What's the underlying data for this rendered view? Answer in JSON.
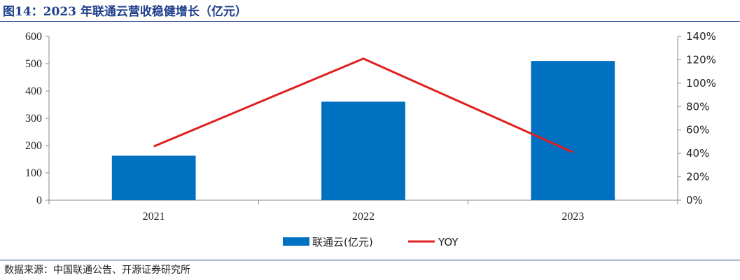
{
  "figure": {
    "title": "图14：2023 年联通云营收稳健增长（亿元）",
    "source": "数据来源：中国联通公告、开源证券研究所"
  },
  "colors": {
    "bar": "#0070c0",
    "line": "#e02020",
    "title": "#1f3e8c",
    "axis": "#888888"
  },
  "chart_data": {
    "type": "bar",
    "categories": [
      "2021",
      "2022",
      "2023"
    ],
    "series": [
      {
        "name": "联通云(亿元)",
        "type": "bar",
        "axis": "left",
        "values": [
          163,
          361,
          510
        ]
      },
      {
        "name": "YOY",
        "type": "line",
        "axis": "right",
        "values": [
          46,
          121,
          41
        ]
      }
    ],
    "y_left": {
      "min": 0,
      "max": 600,
      "step": 100,
      "ticks": [
        "0",
        "100",
        "200",
        "300",
        "400",
        "500",
        "600"
      ]
    },
    "y_right": {
      "min": 0,
      "max": 140,
      "step": 20,
      "ticks": [
        "0%",
        "20%",
        "40%",
        "60%",
        "80%",
        "100%",
        "120%",
        "140%"
      ]
    },
    "grid": false,
    "legend_position": "bottom"
  }
}
